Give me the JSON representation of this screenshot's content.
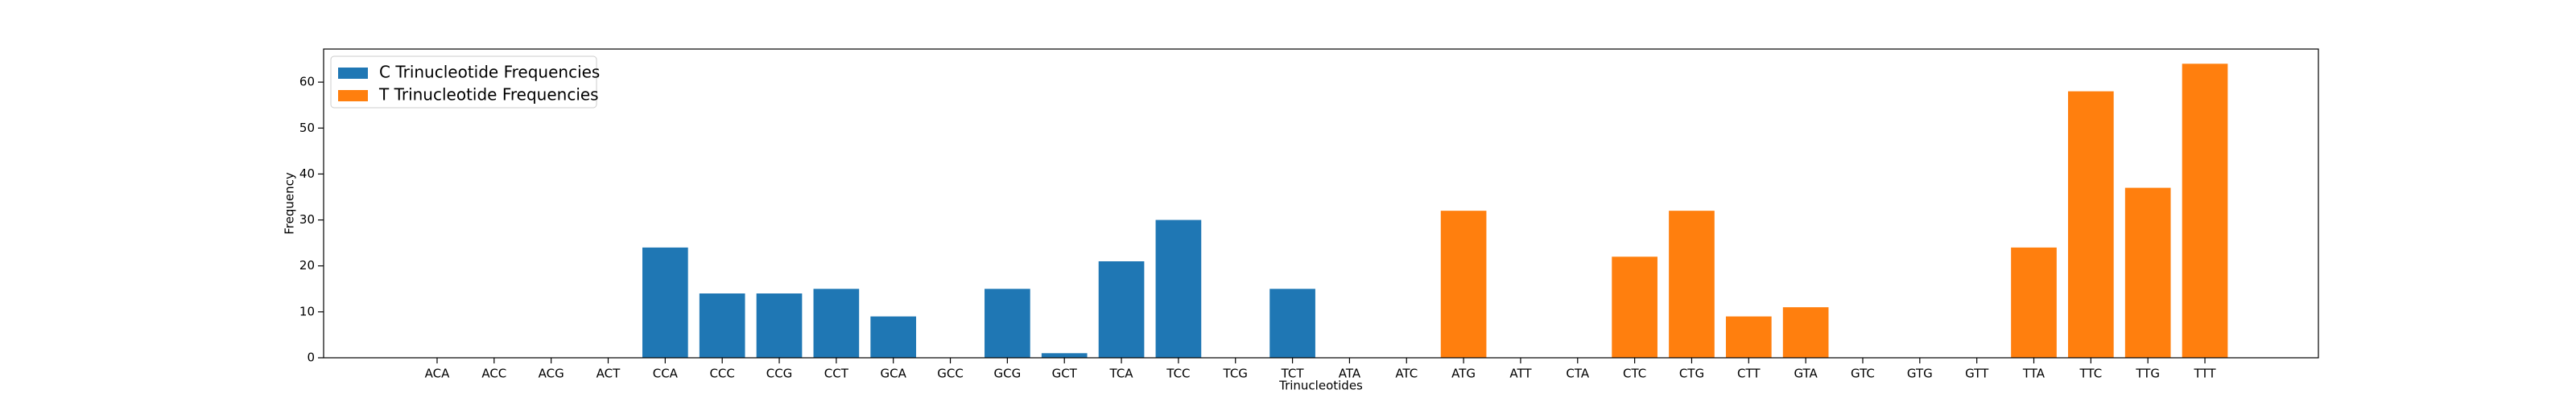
{
  "chart_data": {
    "type": "bar",
    "x_label": "Trinucleotides",
    "y_label": "Frequency",
    "categories": [
      "ACA",
      "ACC",
      "ACG",
      "ACT",
      "CCA",
      "CCC",
      "CCG",
      "CCT",
      "GCA",
      "GCC",
      "GCG",
      "GCT",
      "TCA",
      "TCC",
      "TCG",
      "TCT",
      "ATA",
      "ATC",
      "ATG",
      "ATT",
      "CTA",
      "CTC",
      "CTG",
      "CTT",
      "GTA",
      "GTC",
      "GTG",
      "GTT",
      "TTA",
      "TTC",
      "TTG",
      "TTT"
    ],
    "series": [
      {
        "name": "C Trinucleotide Frequencies",
        "color": "#1f77b4",
        "values": [
          0,
          0,
          0,
          0,
          24,
          14,
          14,
          15,
          9,
          0,
          15,
          1,
          21,
          30,
          0,
          15,
          null,
          null,
          null,
          null,
          null,
          null,
          null,
          null,
          null,
          null,
          null,
          null,
          null,
          null,
          null,
          null
        ]
      },
      {
        "name": "T Trinucleotide Frequencies",
        "color": "#ff7f0e",
        "values": [
          null,
          null,
          null,
          null,
          null,
          null,
          null,
          null,
          null,
          null,
          null,
          null,
          null,
          null,
          null,
          null,
          0,
          0,
          32,
          0,
          0,
          22,
          32,
          9,
          11,
          0,
          0,
          0,
          24,
          58,
          37,
          64
        ]
      }
    ],
    "ylim": [
      0,
      67.2
    ],
    "yticks": [
      0,
      10,
      20,
      30,
      40,
      50,
      60
    ],
    "legend": "upper left"
  }
}
